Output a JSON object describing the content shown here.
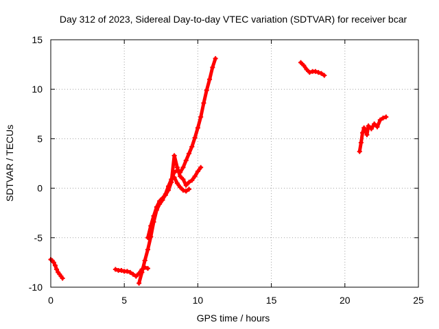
{
  "chart_data": {
    "type": "scatter",
    "title": "Day 312 of 2023, Sidereal Day-to-day VTEC variation (SDTVAR) for receiver bcar",
    "xlabel": "GPS time / hours",
    "ylabel": "SDTVAR / TECUs",
    "xlim": [
      0,
      25
    ],
    "ylim": [
      -10,
      15
    ],
    "xticks": [
      0,
      5,
      10,
      15,
      20,
      25
    ],
    "yticks": [
      -10,
      -5,
      0,
      5,
      10,
      15
    ],
    "grid": true,
    "marker": "plus",
    "series_color": "#ff0000",
    "series": [
      {
        "name": "segment-1",
        "x": [
          0.0,
          0.1,
          0.2,
          0.3,
          0.4,
          0.5,
          0.6,
          0.7,
          0.8
        ],
        "y": [
          -7.2,
          -7.3,
          -7.5,
          -7.8,
          -8.2,
          -8.5,
          -8.7,
          -8.9,
          -9.1
        ]
      },
      {
        "name": "segment-2",
        "x": [
          4.4,
          4.6,
          4.8,
          5.0,
          5.2,
          5.4,
          5.6,
          5.8,
          6.0,
          6.2,
          6.4,
          6.6
        ],
        "y": [
          -8.2,
          -8.3,
          -8.3,
          -8.4,
          -8.4,
          -8.5,
          -8.7,
          -8.9,
          -8.6,
          -8.2,
          -8.0,
          -8.1
        ]
      },
      {
        "name": "segment-3",
        "x": [
          6.0,
          6.2,
          6.4,
          6.6,
          6.8,
          7.0,
          7.2,
          7.4,
          7.6,
          7.8,
          8.0,
          8.2,
          8.4,
          8.6,
          8.8,
          9.0,
          9.2,
          9.4,
          9.6,
          9.8,
          10.0,
          10.2,
          10.4,
          10.6,
          10.8,
          11.0,
          11.2
        ],
        "y": [
          -9.6,
          -8.5,
          -7.3,
          -6.2,
          -4.9,
          -3.4,
          -2.2,
          -1.6,
          -1.2,
          -0.6,
          0.2,
          0.9,
          1.6,
          1.8,
          1.6,
          2.1,
          2.8,
          3.5,
          4.2,
          5.1,
          6.1,
          7.2,
          8.6,
          9.9,
          11.0,
          12.2,
          13.1
        ]
      },
      {
        "name": "segment-4",
        "x": [
          6.6,
          6.8,
          7.0,
          7.2,
          7.4,
          7.6,
          7.8,
          8.0,
          8.2,
          8.4,
          8.6,
          8.8,
          9.0,
          9.2,
          9.4,
          9.6,
          9.8,
          10.0,
          10.2
        ],
        "y": [
          -5.0,
          -3.8,
          -2.8,
          -1.9,
          -1.3,
          -1.0,
          -0.7,
          -0.2,
          0.6,
          3.3,
          2.1,
          1.2,
          0.9,
          0.3,
          0.6,
          0.8,
          1.2,
          1.7,
          2.1
        ]
      },
      {
        "name": "segment-5",
        "x": [
          8.4,
          8.6,
          8.8,
          9.0,
          9.2,
          9.4
        ],
        "y": [
          1.1,
          0.5,
          0.1,
          -0.2,
          -0.3,
          -0.1
        ]
      },
      {
        "name": "segment-6",
        "x": [
          17.0,
          17.2,
          17.4,
          17.6,
          17.8,
          18.0,
          18.2,
          18.4,
          18.6
        ],
        "y": [
          12.7,
          12.4,
          12.0,
          11.7,
          11.8,
          11.8,
          11.7,
          11.6,
          11.4
        ]
      },
      {
        "name": "segment-7",
        "x": [
          21.0,
          21.1,
          21.2,
          21.3,
          21.4,
          21.5,
          21.6,
          21.8,
          22.0,
          22.2,
          22.4,
          22.6,
          22.8
        ],
        "y": [
          3.7,
          4.6,
          5.6,
          6.1,
          5.8,
          5.4,
          6.3,
          6.0,
          6.5,
          6.2,
          6.9,
          7.1,
          7.2
        ]
      }
    ]
  }
}
